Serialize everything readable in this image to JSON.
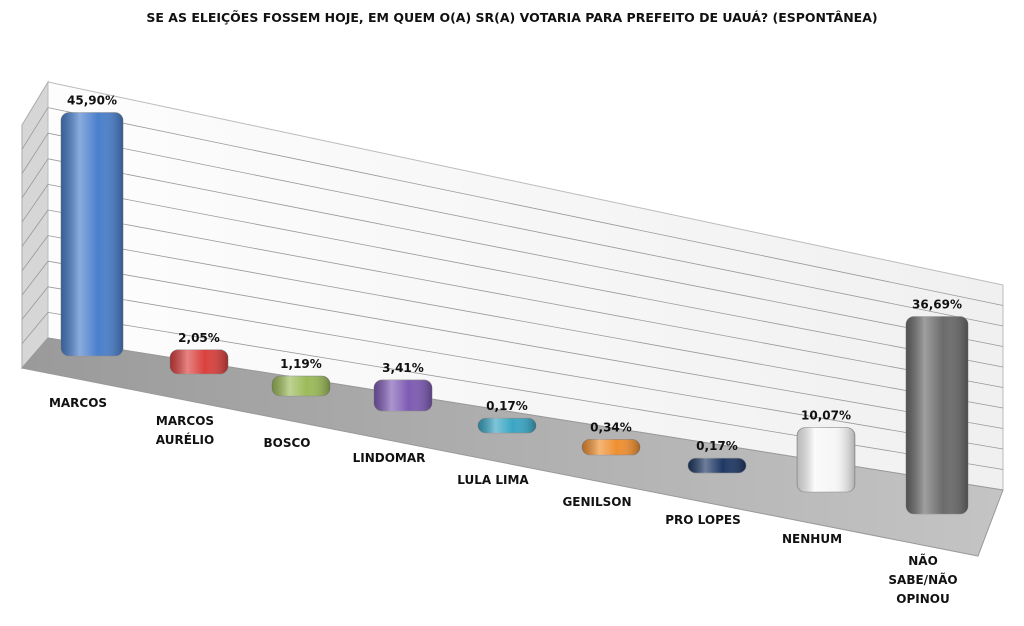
{
  "chart_data": {
    "type": "bar3d",
    "title": "SE AS ELEIÇÕES FOSSEM HOJE, EM QUEM O(A) SR(A) VOTARIA PARA PREFEITO DE UAUÁ? (ESPONTÂNEA)",
    "categories": [
      "MARCOS",
      "MARCOS\nAURÉLIO",
      "BOSCO",
      "LINDOMAR",
      "LULA LIMA",
      "GENILSON",
      "PRO LOPES",
      "NENHUM",
      "NÃO\nSABE/NÃO\nOPINOU"
    ],
    "values": [
      45.9,
      2.05,
      1.19,
      3.41,
      0.17,
      0.34,
      0.17,
      10.07,
      36.69
    ],
    "value_labels": [
      "45,90%",
      "2,05%",
      "1,19%",
      "3,41%",
      "0,17%",
      "0,34%",
      "0,17%",
      "10,07%",
      "36,69%"
    ],
    "colors": [
      "#4a7fcc",
      "#d9413e",
      "#9bbb59",
      "#7e5bb5",
      "#3aa6c4",
      "#ef8f30",
      "#1f3864",
      "#f7f7f7",
      "#6b6b6b"
    ]
  }
}
